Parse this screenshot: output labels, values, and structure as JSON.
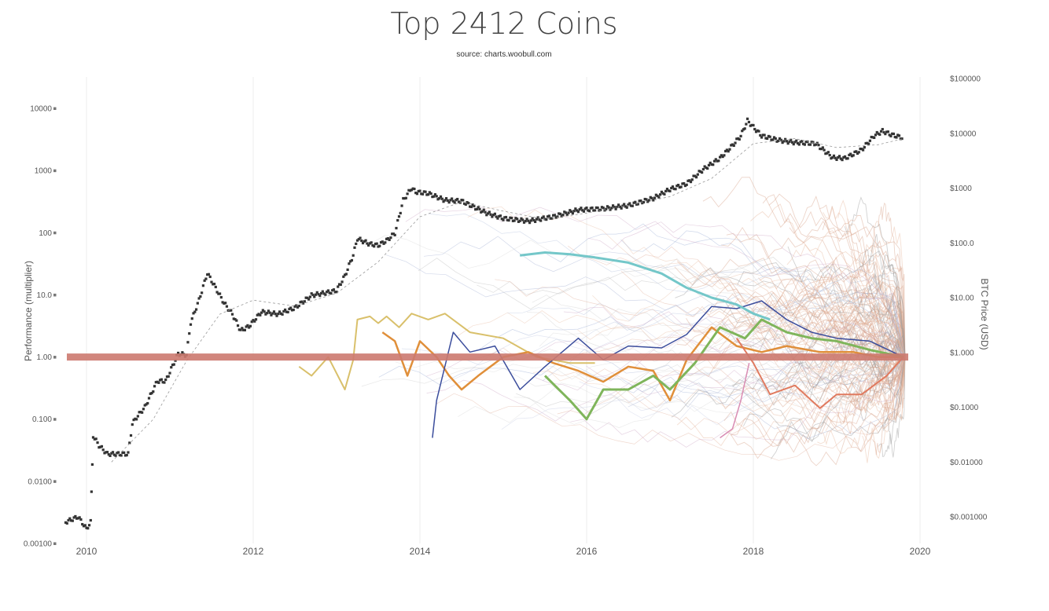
{
  "chart_data": {
    "type": "line",
    "title": "Top 2412 Coins",
    "subtitle": "source: charts.woobull.com",
    "xlabel": "",
    "ylabel": "Performance (multiplier)",
    "y2label": "BTC Price (USD)",
    "xlim": [
      2009.75,
      2019.95
    ],
    "ylim": [
      0.001,
      30000
    ],
    "y2lim": [
      0.0003,
      130000
    ],
    "yscale": "log",
    "y2scale": "log",
    "grid": true,
    "x_ticks": [
      "2010",
      "2012",
      "2014",
      "2016",
      "2018",
      "2020"
    ],
    "y_ticks": [
      "0.00100",
      "0.0100",
      "0.100",
      "1.00",
      "10.0",
      "100",
      "1000",
      "10000"
    ],
    "y2_ticks": [
      "$0.001000",
      "$0.01000",
      "$0.1000",
      "$1.000",
      "$10.00",
      "$100.0",
      "$1000",
      "$10000",
      "$100000"
    ],
    "series": [
      {
        "color": "#333333",
        "style": "dotted",
        "axis": "y2",
        "x": [
          2009.75,
          2009.9,
          2010.0,
          2010.05,
          2010.08,
          2010.15,
          2010.25,
          2010.4,
          2010.5,
          2010.55,
          2010.6,
          2010.7,
          2010.85,
          2010.95,
          2011.1,
          2011.2,
          2011.25,
          2011.35,
          2011.45,
          2011.55,
          2011.65,
          2011.75,
          2011.85,
          2011.95,
          2012.1,
          2012.3,
          2012.5,
          2012.7,
          2012.9,
          2013.0,
          2013.1,
          2013.2,
          2013.25,
          2013.3,
          2013.4,
          2013.5,
          2013.6,
          2013.7,
          2013.8,
          2013.9,
          2013.95,
          2014.1,
          2014.3,
          2014.5,
          2014.8,
          2015.0,
          2015.3,
          2015.6,
          2015.9,
          2016.2,
          2016.5,
          2016.8,
          2017.0,
          2017.2,
          2017.4,
          2017.6,
          2017.75,
          2017.85,
          2017.93,
          2018.0,
          2018.1,
          2018.3,
          2018.5,
          2018.75,
          2018.95,
          2019.1,
          2019.3,
          2019.45,
          2019.55,
          2019.65,
          2019.8
        ],
        "values": [
          0.0008,
          0.001,
          0.0006,
          0.0008,
          0.03,
          0.02,
          0.014,
          0.014,
          0.014,
          0.05,
          0.065,
          0.1,
          0.3,
          0.3,
          0.95,
          0.9,
          3.5,
          9.0,
          28,
          15,
          8,
          5,
          2.5,
          3.0,
          5.5,
          5.0,
          6.5,
          11,
          12.5,
          13.5,
          25,
          60,
          120,
          110,
          95,
          90,
          110,
          150,
          600,
          1000,
          850,
          800,
          600,
          580,
          350,
          280,
          250,
          300,
          400,
          420,
          480,
          650,
          950,
          1200,
          2200,
          3500,
          6000,
          9000,
          17000,
          13000,
          9000,
          7500,
          6800,
          6500,
          3600,
          3500,
          5000,
          9000,
          11000,
          9500,
          8200
        ]
      },
      {
        "color": "#999999",
        "style": "dashed",
        "width": 0.8,
        "axis": "y2",
        "x": [
          2010.3,
          2010.8,
          2011.2,
          2011.6,
          2012.0,
          2012.5,
          2013.0,
          2013.5,
          2014.0,
          2014.5,
          2015.0,
          2015.5,
          2016.0,
          2016.5,
          2017.0,
          2017.5,
          2018.0,
          2018.5,
          2019.0,
          2019.5,
          2019.8
        ],
        "values": [
          0.01,
          0.06,
          0.7,
          5,
          9,
          7,
          12,
          45,
          300,
          560,
          380,
          270,
          350,
          480,
          700,
          1500,
          6500,
          8000,
          5500,
          6200,
          8000
        ]
      },
      {
        "color": "#d9c06b",
        "width": 2,
        "x": [
          2012.55,
          2012.7,
          2012.9,
          2013.1,
          2013.2,
          2013.25,
          2013.4,
          2013.5,
          2013.6,
          2013.75,
          2013.9,
          2014.1,
          2014.3,
          2014.6,
          2015.0,
          2015.4,
          2015.8,
          2016.1
        ],
        "values": [
          0.7,
          0.5,
          1.0,
          0.3,
          0.9,
          4.0,
          4.5,
          3.5,
          4.5,
          3.0,
          5.0,
          4.0,
          5.0,
          2.5,
          2.0,
          1.0,
          0.8,
          0.8
        ]
      },
      {
        "color": "#e08f3a",
        "width": 2.5,
        "x": [
          2013.55,
          2013.7,
          2013.85,
          2014.0,
          2014.2,
          2014.35,
          2014.5,
          2014.7,
          2015.0,
          2015.3,
          2015.6,
          2015.9,
          2016.2,
          2016.5,
          2016.8,
          2017.0,
          2017.2,
          2017.5,
          2017.8,
          2018.1,
          2018.4,
          2018.8,
          2019.2,
          2019.5,
          2019.8
        ],
        "values": [
          2.5,
          1.8,
          0.5,
          1.8,
          1.0,
          0.5,
          0.3,
          0.5,
          1.0,
          1.2,
          0.8,
          0.6,
          0.4,
          0.7,
          0.6,
          0.2,
          0.9,
          3.0,
          1.5,
          1.2,
          1.5,
          1.2,
          1.2,
          1.0,
          1.0
        ]
      },
      {
        "color": "#3b4d9c",
        "width": 1.5,
        "x": [
          2014.15,
          2014.2,
          2014.4,
          2014.6,
          2014.9,
          2015.2,
          2015.5,
          2015.9,
          2016.2,
          2016.5,
          2016.9,
          2017.2,
          2017.5,
          2017.8,
          2018.1,
          2018.4,
          2018.7,
          2019.0,
          2019.4,
          2019.8
        ],
        "values": [
          0.05,
          0.2,
          2.5,
          1.2,
          1.5,
          0.3,
          0.7,
          2.0,
          0.9,
          1.5,
          1.4,
          2.3,
          6.5,
          6.0,
          8.0,
          4.0,
          2.5,
          2.0,
          1.8,
          1.0
        ]
      },
      {
        "color": "#74c7c9",
        "width": 3,
        "x": [
          2015.2,
          2015.5,
          2015.8,
          2016.1,
          2016.5,
          2016.9,
          2017.2,
          2017.5,
          2017.8,
          2018.0,
          2018.2
        ],
        "values": [
          43,
          48,
          45,
          40,
          33,
          22,
          13,
          9,
          7,
          5,
          4
        ]
      },
      {
        "color": "#7fb55b",
        "width": 3,
        "x": [
          2015.5,
          2015.8,
          2016.0,
          2016.2,
          2016.5,
          2016.8,
          2017.0,
          2017.3,
          2017.6,
          2017.9,
          2018.1,
          2018.4,
          2018.7,
          2019.0,
          2019.4,
          2019.8
        ],
        "values": [
          0.5,
          0.2,
          0.1,
          0.3,
          0.3,
          0.5,
          0.3,
          0.8,
          3.0,
          2.0,
          4.0,
          2.5,
          2.0,
          1.8,
          1.3,
          1.0
        ]
      },
      {
        "color": "#e07a5f",
        "width": 2,
        "x": [
          2017.8,
          2018.0,
          2018.2,
          2018.5,
          2018.8,
          2019.0,
          2019.3,
          2019.6,
          2019.8
        ],
        "values": [
          2.0,
          0.8,
          0.25,
          0.35,
          0.15,
          0.25,
          0.25,
          0.5,
          1.0
        ]
      },
      {
        "color": "#d98cb3",
        "width": 1.5,
        "x": [
          2017.6,
          2017.75,
          2017.85,
          2017.95
        ],
        "values": [
          0.05,
          0.07,
          0.2,
          0.8
        ]
      }
    ],
    "reference_line": {
      "y": 1.0,
      "color": "#cd7a6f"
    }
  }
}
